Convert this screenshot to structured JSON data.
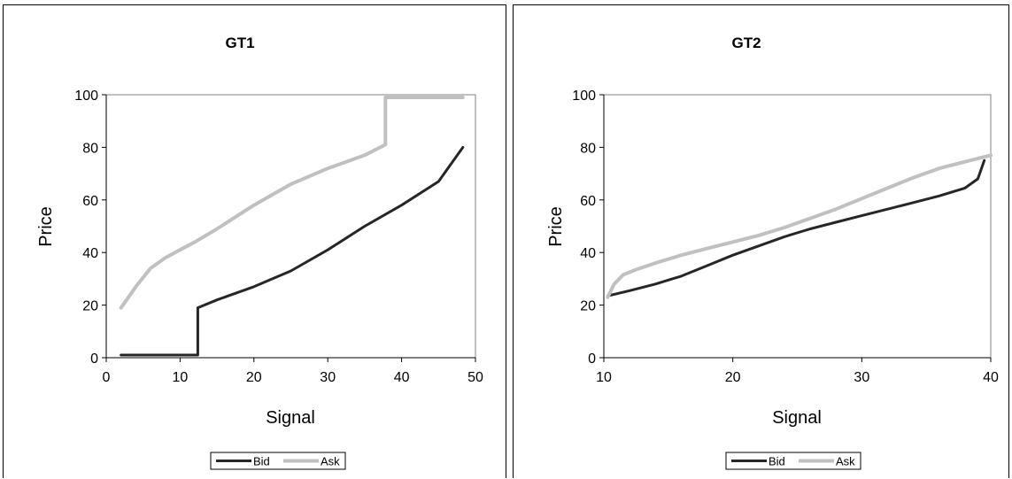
{
  "chart_data": [
    {
      "type": "line",
      "title": "GT1",
      "xlabel": "Signal",
      "ylabel": "Price",
      "xlim": [
        0,
        50
      ],
      "ylim": [
        0,
        100
      ],
      "xticks": [
        "0",
        "10",
        "20",
        "30",
        "40",
        "50"
      ],
      "yticks": [
        "0",
        "20",
        "40",
        "60",
        "80",
        "100"
      ],
      "grid": false,
      "legend_position": "bottom",
      "series": [
        {
          "name": "Bid",
          "color": "#262626",
          "x": [
            2,
            5,
            8,
            12.4,
            12.4,
            15,
            20,
            25,
            30,
            35,
            40,
            45,
            48.3
          ],
          "y": [
            1,
            1,
            1,
            1,
            19,
            22,
            27,
            33,
            41,
            50,
            58,
            67,
            80
          ]
        },
        {
          "name": "Ask",
          "color": "#c0c0c0",
          "x": [
            2,
            4,
            6,
            8,
            10,
            12,
            15,
            20,
            25,
            30,
            35,
            37.8,
            37.8,
            40,
            45,
            48.3
          ],
          "y": [
            19,
            27,
            34,
            38,
            41,
            44,
            49,
            58,
            66,
            72,
            77,
            81,
            99,
            99,
            99,
            99
          ]
        }
      ]
    },
    {
      "type": "line",
      "title": "GT2",
      "xlabel": "Signal",
      "ylabel": "Price",
      "xlim": [
        10,
        40
      ],
      "ylim": [
        0,
        100
      ],
      "xticks": [
        "10",
        "20",
        "30",
        "40"
      ],
      "yticks": [
        "0",
        "20",
        "40",
        "60",
        "80",
        "100"
      ],
      "grid": false,
      "legend_position": "bottom",
      "series": [
        {
          "name": "Bid",
          "color": "#262626",
          "x": [
            10.3,
            12,
            14,
            16,
            18,
            20,
            22,
            24,
            26,
            28,
            30,
            32,
            34,
            36,
            38,
            39,
            39.5
          ],
          "y": [
            23.5,
            25.5,
            28,
            31,
            35,
            39,
            42.5,
            46,
            49,
            51.5,
            54,
            56.5,
            59,
            61.5,
            64.5,
            68,
            75
          ]
        },
        {
          "name": "Ask",
          "color": "#c0c0c0",
          "x": [
            10.3,
            10.8,
            11.5,
            12.5,
            14,
            16,
            18,
            20,
            22,
            24,
            26,
            28,
            30,
            32,
            34,
            36,
            38,
            40
          ],
          "y": [
            23,
            28,
            31.5,
            33.5,
            36,
            39,
            41.5,
            44,
            46.5,
            49.5,
            53,
            56.5,
            60.5,
            64.5,
            68.5,
            72,
            74.5,
            77
          ]
        }
      ]
    }
  ]
}
